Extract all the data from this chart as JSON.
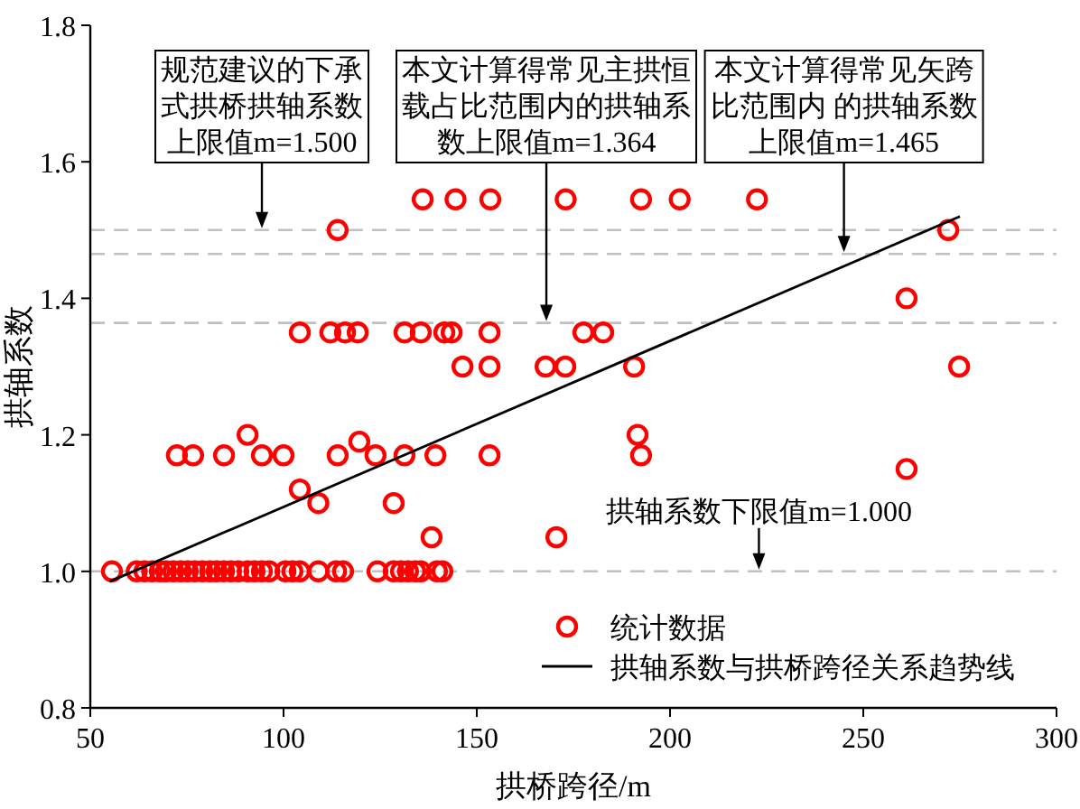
{
  "chart_data": {
    "type": "scatter",
    "xlabel": "拱桥跨径/m",
    "ylabel": "拱轴系数",
    "xlim": [
      50,
      300
    ],
    "ylim": [
      0.8,
      1.8
    ],
    "xticks": [
      50,
      100,
      150,
      200,
      250,
      300
    ],
    "yticks": [
      {
        "value": 0.8,
        "label": "0.8"
      },
      {
        "value": 1.0,
        "label": "1.0"
      },
      {
        "value": 1.2,
        "label": "1.2"
      },
      {
        "value": 1.4,
        "label": "1.4"
      },
      {
        "value": 1.6,
        "label": "1.6"
      },
      {
        "value": 1.8,
        "label": "1.8"
      }
    ],
    "legend": "bottom right",
    "grid": false,
    "series": [
      {
        "name": "统计数据",
        "color": "#ff0000",
        "marker": "circle",
        "x": [
          55.6,
          62,
          64,
          66,
          68,
          69.6,
          71.5,
          73.4,
          75.2,
          77,
          79,
          81,
          82.7,
          84.6,
          86.4,
          88.3,
          90.7,
          92.5,
          94.4,
          96.3,
          100.5,
          102.3,
          104.2,
          109,
          113.6,
          115.4,
          124.3,
          128.5,
          130.4,
          132.2,
          134.1,
          135.5,
          139.7,
          141.1,
          72.4,
          76.6,
          84.6,
          94.4,
          100,
          114,
          123.8,
          131.3,
          139.3,
          153.3,
          192.5,
          90.7,
          191.6,
          119.6,
          104.2,
          109,
          128.5,
          138.3,
          170.6,
          261.2,
          104.2,
          112.1,
          115.9,
          119.2,
          131.3,
          135.5,
          141.6,
          143.5,
          153.3,
          177.6,
          182.7,
          146.3,
          153.3,
          167.8,
          172.9,
          190.7,
          274.8,
          261.2,
          114,
          272,
          136,
          144.5,
          153.5,
          173,
          192.5,
          202.5,
          222.5
        ],
        "values": [
          1.0,
          1.0,
          1.0,
          1.0,
          1.0,
          1.0,
          1.0,
          1.0,
          1.0,
          1.0,
          1.0,
          1.0,
          1.0,
          1.0,
          1.0,
          1.0,
          1.0,
          1.0,
          1.0,
          1.0,
          1.0,
          1.0,
          1.0,
          1.0,
          1.0,
          1.0,
          1.0,
          1.0,
          1.0,
          1.0,
          1.0,
          1.0,
          1.0,
          1.0,
          1.17,
          1.17,
          1.17,
          1.17,
          1.17,
          1.17,
          1.17,
          1.17,
          1.17,
          1.17,
          1.17,
          1.2,
          1.2,
          1.19,
          1.12,
          1.1,
          1.1,
          1.05,
          1.05,
          1.15,
          1.35,
          1.35,
          1.35,
          1.35,
          1.35,
          1.35,
          1.35,
          1.35,
          1.35,
          1.35,
          1.35,
          1.3,
          1.3,
          1.3,
          1.3,
          1.3,
          1.3,
          1.4,
          1.5,
          1.5,
          1.545,
          1.545,
          1.545,
          1.545,
          1.545,
          1.545,
          1.545
        ]
      },
      {
        "name": "拱轴系数与拱桥跨径关系趋势线",
        "type": "line",
        "color": "#000000",
        "x": [
          55,
          275
        ],
        "values": [
          0.985,
          1.52
        ]
      }
    ],
    "ref_lines": [
      {
        "axis": "y",
        "value": 1.5,
        "color": "#c0c0c0",
        "line_style": "dashed"
      },
      {
        "axis": "y",
        "value": 1.465,
        "color": "#c0c0c0",
        "line_style": "dashed"
      },
      {
        "axis": "y",
        "value": 1.364,
        "color": "#c0c0c0",
        "line_style": "dashed"
      },
      {
        "axis": "y",
        "value": 1.0,
        "color": "#c0c0c0",
        "line_style": "dashed"
      }
    ],
    "annotations": [
      {
        "text": "规范建议的下承式拱桥拱轴系数上限值m=1.500",
        "x": 94.4,
        "y": 1.5
      },
      {
        "text": "本文计算得常见主拱恒载占比范围内的拱轴系数上限值m=1.364",
        "x": 168,
        "y": 1.364
      },
      {
        "text": "本文计算得常见矢跨比范围内  的拱轴系数上限值m=1.465",
        "x": 245,
        "y": 1.465
      },
      {
        "text": "拱轴系数下限值m=1.000",
        "x": 223,
        "y": 1.0
      }
    ]
  }
}
